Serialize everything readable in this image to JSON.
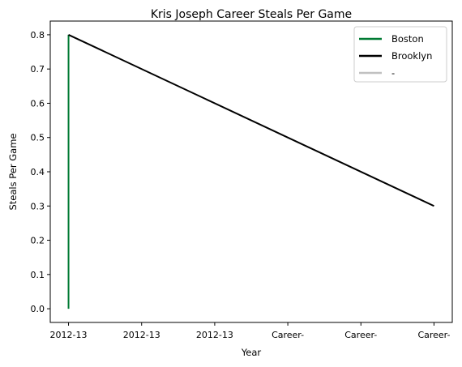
{
  "chart_data": {
    "type": "line",
    "title": "Kris Joseph Career Steals Per Game",
    "xlabel": "Year",
    "ylabel": "Steals Per Game",
    "x_ticks": [
      "2012-13",
      "2012-13",
      "2012-13",
      "Career-",
      "Career-",
      "Career-"
    ],
    "y_ticks": [
      "0.0",
      "0.1",
      "0.2",
      "0.3",
      "0.4",
      "0.5",
      "0.6",
      "0.7",
      "0.8"
    ],
    "ylim": [
      -0.04,
      0.84
    ],
    "xlim": [
      -0.25,
      5.25
    ],
    "grid": false,
    "legend_position": "top-right",
    "series": [
      {
        "name": "Boston",
        "color": "#007A33",
        "x": [
          0,
          0
        ],
        "y": [
          0.8,
          0.0
        ]
      },
      {
        "name": "Brooklyn",
        "color": "#000000",
        "x": [
          0,
          5
        ],
        "y": [
          0.8,
          0.3
        ]
      },
      {
        "name": "-",
        "color": "#C0C0C0",
        "x": [],
        "y": []
      }
    ]
  }
}
